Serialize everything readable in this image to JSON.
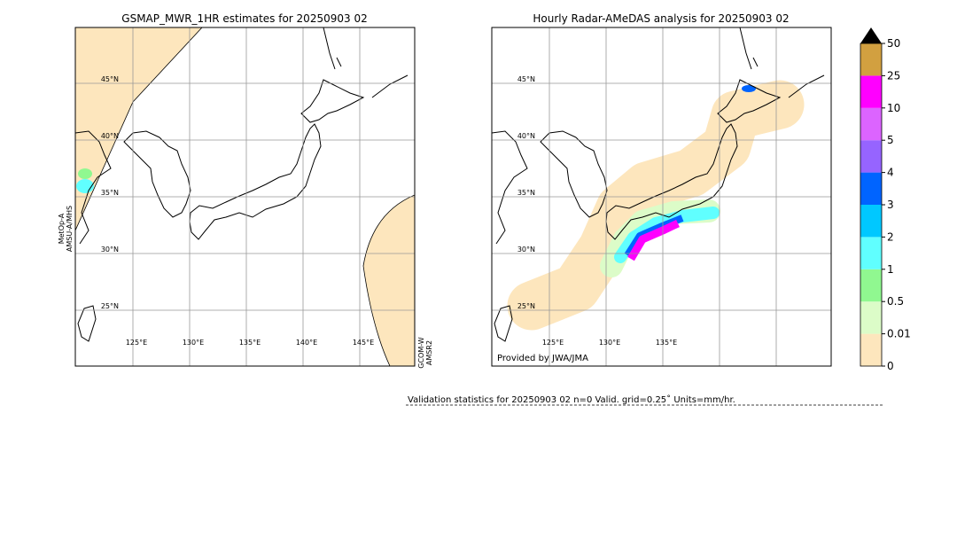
{
  "left_map": {
    "title": "GSMAP_MWR_1HR estimates for 20250903 02",
    "lat_labels": [
      "45°N",
      "40°N",
      "35°N",
      "30°N",
      "25°N"
    ],
    "lon_labels": [
      "125°E",
      "130°E",
      "135°E",
      "140°E",
      "145°E"
    ],
    "sensor_left": [
      "MetOp-A",
      "AMSU-A/MHS"
    ],
    "sensor_right": [
      "GCOM-W",
      "AMSR2"
    ]
  },
  "right_map": {
    "title": "Hourly Radar-AMeDAS analysis for 20250903 02",
    "lat_labels": [
      "45°N",
      "40°N",
      "35°N",
      "30°N",
      "25°N"
    ],
    "lon_labels": [
      "125°E",
      "130°E",
      "135°E"
    ],
    "credit": "Provided by JWA/JMA"
  },
  "colorbar": {
    "labels": [
      "0",
      "0.01",
      "0.5",
      "1",
      "2",
      "3",
      "4",
      "5",
      "10",
      "25",
      "50"
    ],
    "colors": [
      "#fde6bd",
      "#dcfcc8",
      "#90f890",
      "#60ffff",
      "#00c8ff",
      "#0064ff",
      "#9664ff",
      "#dc64ff",
      "#ff00ff",
      "#d2a040"
    ],
    "extend_color": "#000000"
  },
  "footer": "Validation statistics for 20250903 02  n=0 Valid. grid=0.25˚ Units=mm/hr."
}
